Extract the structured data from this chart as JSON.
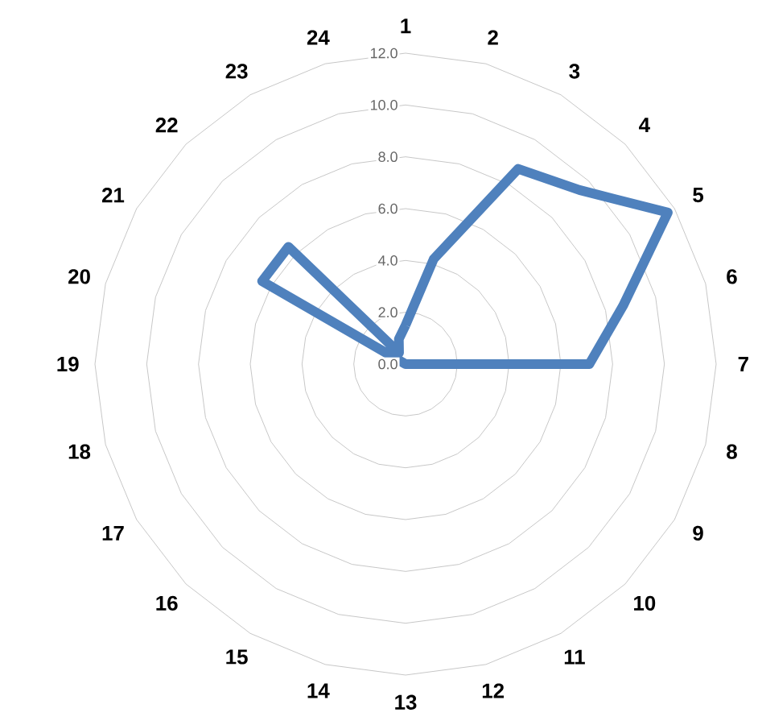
{
  "chart_data": {
    "type": "radar",
    "categories": [
      "1",
      "2",
      "3",
      "4",
      "5",
      "6",
      "7",
      "8",
      "9",
      "10",
      "11",
      "12",
      "13",
      "14",
      "15",
      "16",
      "17",
      "18",
      "19",
      "20",
      "21",
      "22",
      "23",
      "24"
    ],
    "series": [
      {
        "color": "#4f81bd",
        "values": [
          1.5,
          4.2,
          8.7,
          9.5,
          11.7,
          8.7,
          7.1,
          0,
          0,
          0,
          0,
          0,
          0,
          0,
          0,
          0,
          0,
          0,
          0,
          0,
          6.4,
          6.4,
          0.5,
          1.0
        ]
      }
    ],
    "ylim": [
      0,
      12
    ],
    "yticks": [
      {
        "value": 0,
        "label": "0.0"
      },
      {
        "value": 2,
        "label": "2.0"
      },
      {
        "value": 4,
        "label": "4.0"
      },
      {
        "value": 6,
        "label": "6.0"
      },
      {
        "value": 8,
        "label": "8.0"
      },
      {
        "value": 10,
        "label": "10.0"
      },
      {
        "value": 12,
        "label": "12.0"
      }
    ],
    "grid": true,
    "marker": "none",
    "line_style": "solid"
  }
}
